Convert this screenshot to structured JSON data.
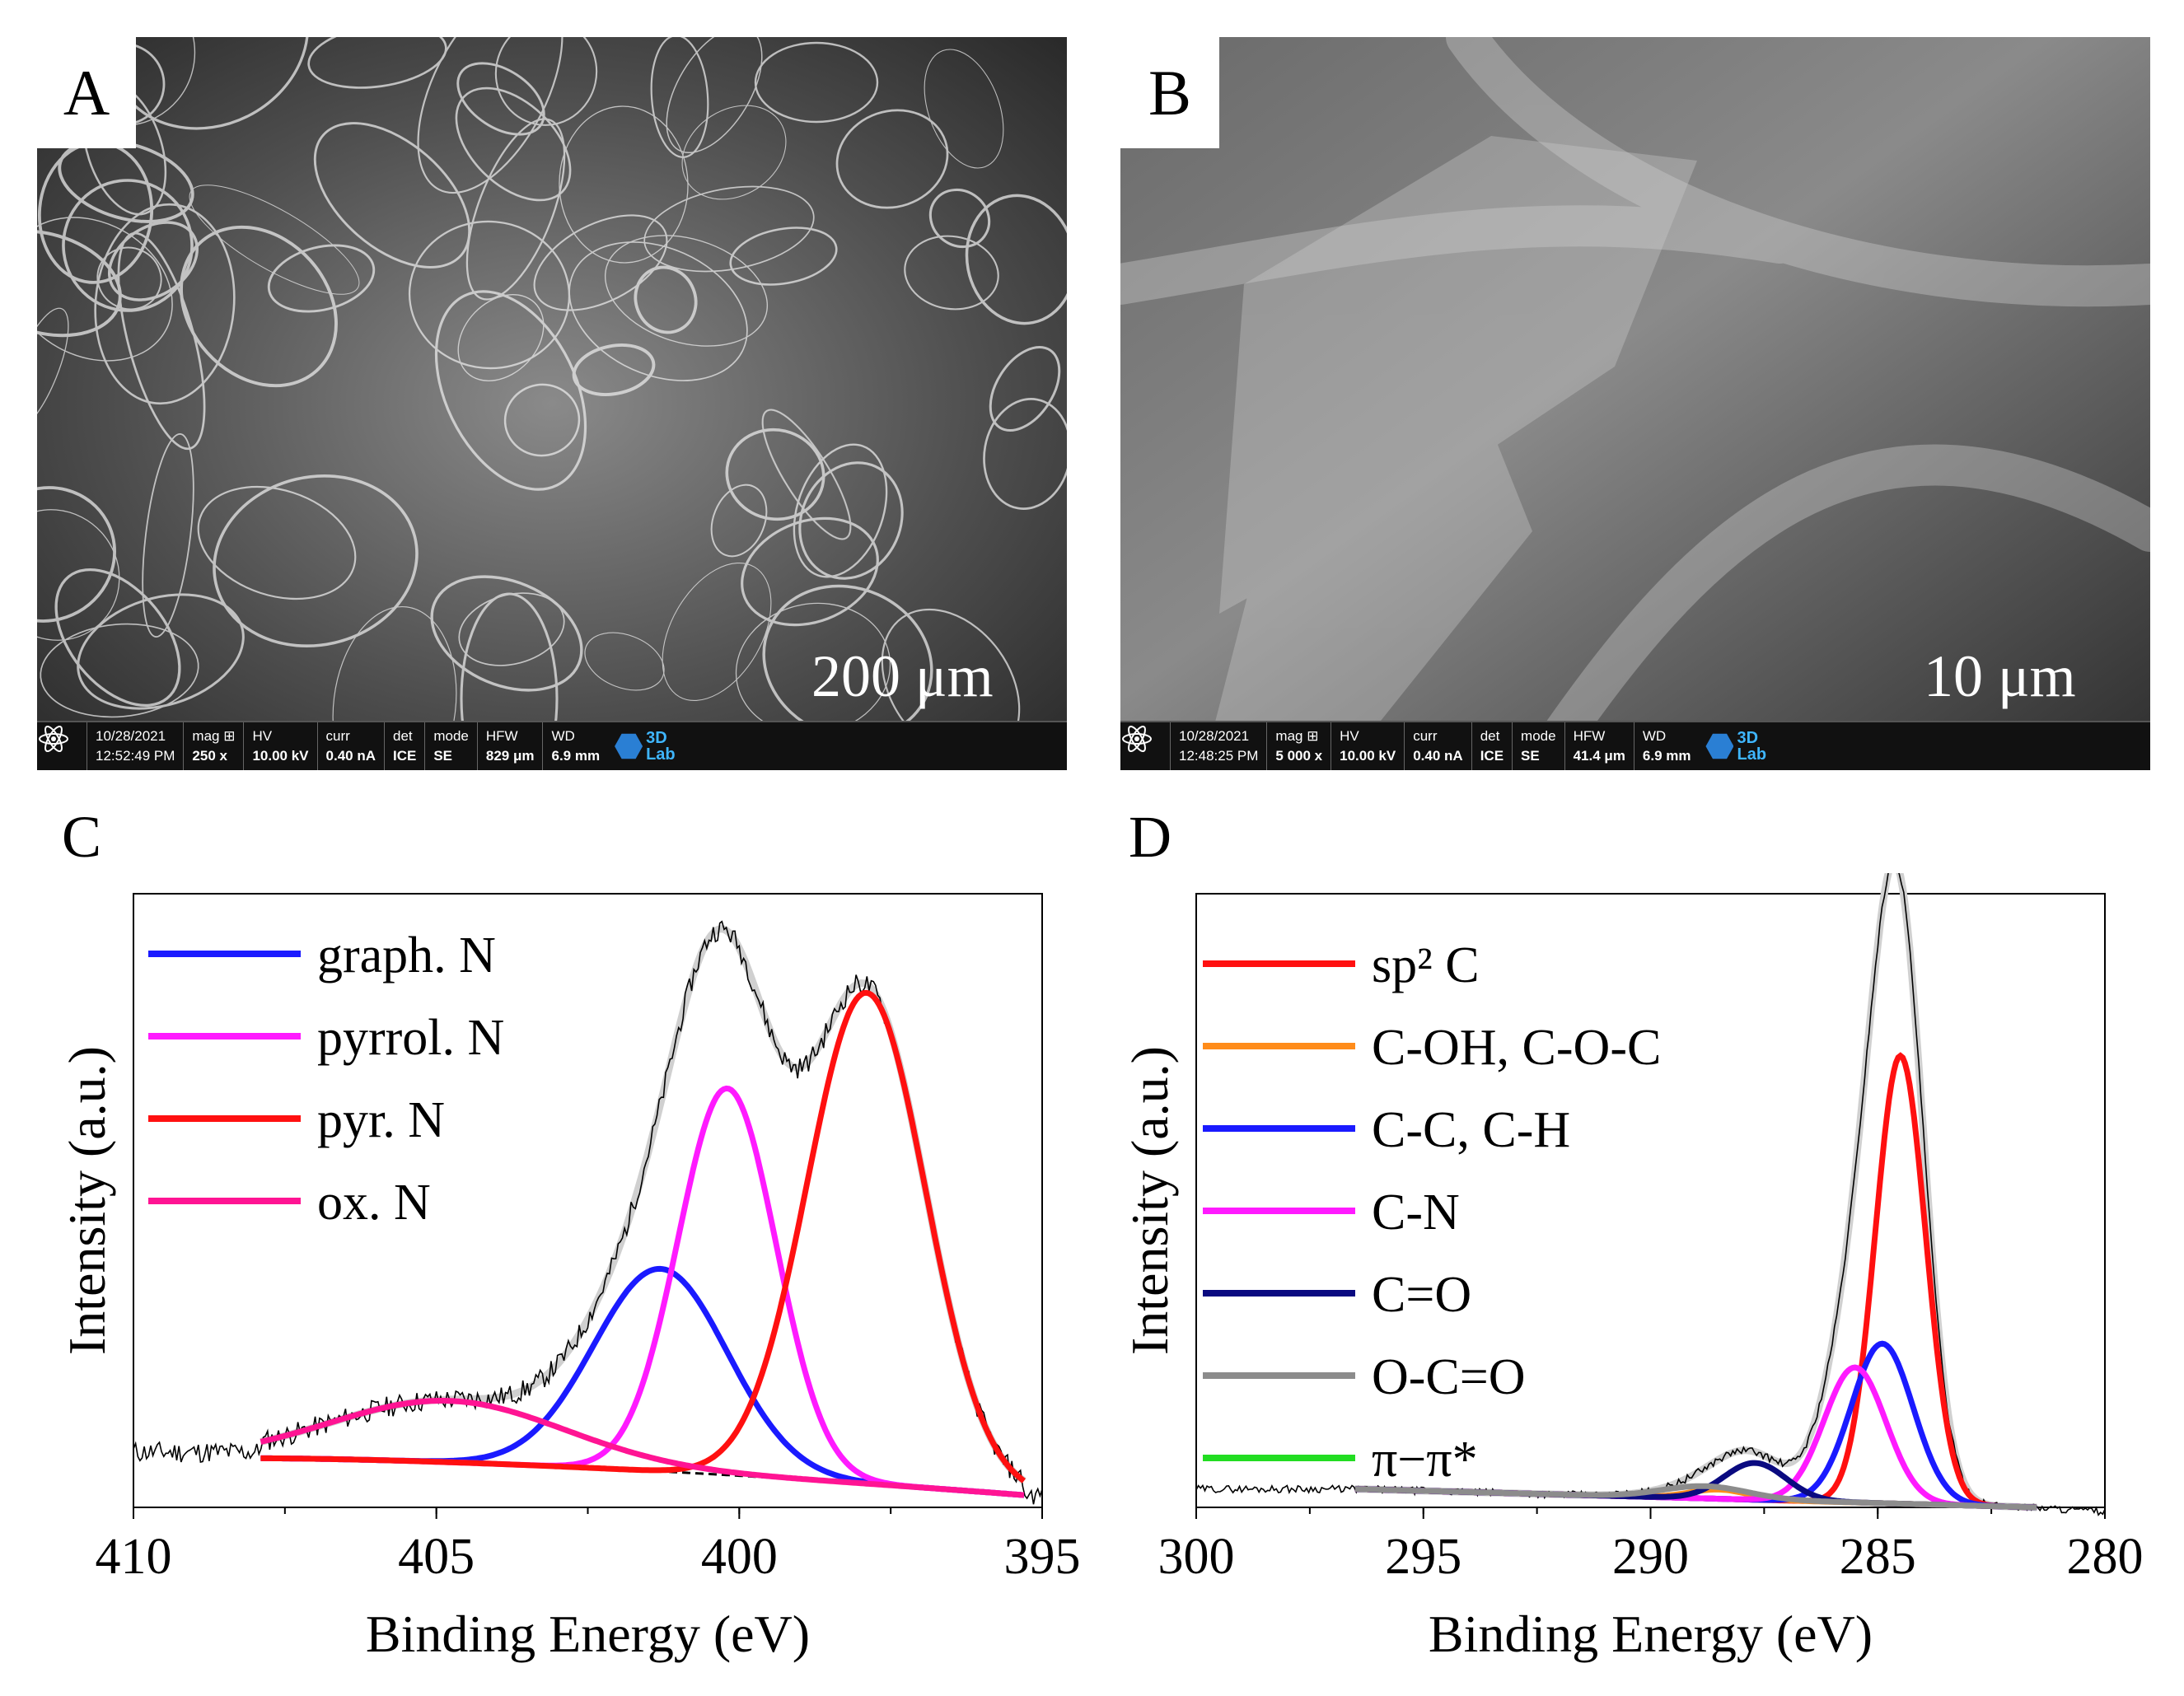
{
  "panels": {
    "A": {
      "letter": "A",
      "scale_label": "200 μm",
      "databar": {
        "date": "10/28/2021",
        "time": "12:52:49 PM",
        "mag_label": "mag ⊞",
        "mag": "250 x",
        "hv_label": "HV",
        "hv": "10.00 kV",
        "curr_label": "curr",
        "curr": "0.40 nA",
        "det_label": "det",
        "det": "ICE",
        "mode_label": "mode",
        "mode": "SE",
        "hfw_label": "HFW",
        "hfw": "829 μm",
        "wd_label": "WD",
        "wd": "6.9 mm",
        "logo_top": "3D",
        "logo_bottom": "Lab"
      }
    },
    "B": {
      "letter": "B",
      "scale_label": "10 μm",
      "databar": {
        "date": "10/28/2021",
        "time": "12:48:25 PM",
        "mag_label": "mag ⊞",
        "mag": "5 000 x",
        "hv_label": "HV",
        "hv": "10.00 kV",
        "curr_label": "curr",
        "curr": "0.40 nA",
        "det_label": "det",
        "det": "ICE",
        "mode_label": "mode",
        "mode": "SE",
        "hfw_label": "HFW",
        "hfw": "41.4 μm",
        "wd_label": "WD",
        "wd": "6.9 mm",
        "logo_top": "3D",
        "logo_bottom": "Lab"
      }
    },
    "C": {
      "letter": "C"
    },
    "D": {
      "letter": "D"
    }
  },
  "chart_data": [
    {
      "id": "C",
      "type": "line",
      "xlabel": "Binding Energy (eV)",
      "ylabel": "Intensity (a.u.)",
      "xlim": [
        410,
        395
      ],
      "xticks": [
        "410",
        "405",
        "400",
        "395"
      ],
      "xtick_values": [
        410,
        405,
        400,
        395
      ],
      "legend_position": "top-left",
      "grid": false,
      "series": [
        {
          "name": "graph. N",
          "color": "#1a1aff",
          "peak_x": 401.3,
          "peak_y": 0.33,
          "fwhm": 2.6,
          "range": [
            407.9,
            395.3
          ],
          "kind": "gauss"
        },
        {
          "name": "pyrrol. N",
          "color": "#ff1aff",
          "peak_x": 400.2,
          "peak_y": 0.63,
          "fwhm": 1.9,
          "range": [
            407.9,
            395.3
          ],
          "kind": "gauss"
        },
        {
          "name": "pyr. N",
          "color": "#ff1010",
          "peak_x": 397.9,
          "peak_y": 0.8,
          "fwhm": 2.3,
          "range": [
            407.9,
            395.3
          ],
          "kind": "gauss"
        },
        {
          "name": "ox. N",
          "color": "#ff1493",
          "peak_x": 404.8,
          "peak_y": 0.1,
          "fwhm": 4.5,
          "range": [
            407.9,
            395.3
          ],
          "kind": "gauss"
        }
      ],
      "envelope_color": "#d0d0d0",
      "raw_color": "#000000",
      "baseline_color": "#000000"
    },
    {
      "id": "D",
      "type": "line",
      "xlabel": "Binding Energy (eV)",
      "ylabel": "Intensity (a.u.)",
      "xlim": [
        300,
        280
      ],
      "xticks": [
        "300",
        "295",
        "290",
        "285",
        "280"
      ],
      "xtick_values": [
        300,
        295,
        290,
        285,
        280
      ],
      "legend_position": "top-left",
      "grid": false,
      "series": [
        {
          "name": "sp² C",
          "color": "#ff1010",
          "peak_x": 284.5,
          "peak_y": 0.73,
          "fwhm": 1.3,
          "range": [
            296.5,
            281.5
          ],
          "kind": "gauss"
        },
        {
          "name": "C-OH, C-O-C",
          "color": "#ff8c1a",
          "peak_x": 288.5,
          "peak_y": 0.015,
          "fwhm": 1.5,
          "range": [
            296.5,
            281.5
          ],
          "kind": "gauss"
        },
        {
          "name": "C-C, C-H",
          "color": "#1a1aff",
          "peak_x": 284.9,
          "peak_y": 0.26,
          "fwhm": 1.6,
          "range": [
            296.5,
            281.5
          ],
          "kind": "gauss"
        },
        {
          "name": "C-N",
          "color": "#ff1aff",
          "peak_x": 285.5,
          "peak_y": 0.22,
          "fwhm": 1.6,
          "range": [
            296.5,
            281.5
          ],
          "kind": "gauss"
        },
        {
          "name": "C=O",
          "color": "#0a0a80",
          "peak_x": 287.7,
          "peak_y": 0.06,
          "fwhm": 1.6,
          "range": [
            296.5,
            281.5
          ],
          "kind": "gauss"
        },
        {
          "name": "O-C=O",
          "color": "#8c8c8c",
          "peak_x": 288.8,
          "peak_y": 0.02,
          "fwhm": 2.2,
          "range": [
            296.5,
            281.5
          ],
          "kind": "gauss"
        },
        {
          "name": "π−π*",
          "color": "#22dd22",
          "peak_x": 290.5,
          "peak_y": 0.0,
          "fwhm": 2.0,
          "range": [
            296.5,
            281.5
          ],
          "kind": "gauss"
        }
      ],
      "envelope_color": "#d0d0d0",
      "raw_color": "#000000",
      "baseline_color": "#8c8c8c"
    }
  ]
}
